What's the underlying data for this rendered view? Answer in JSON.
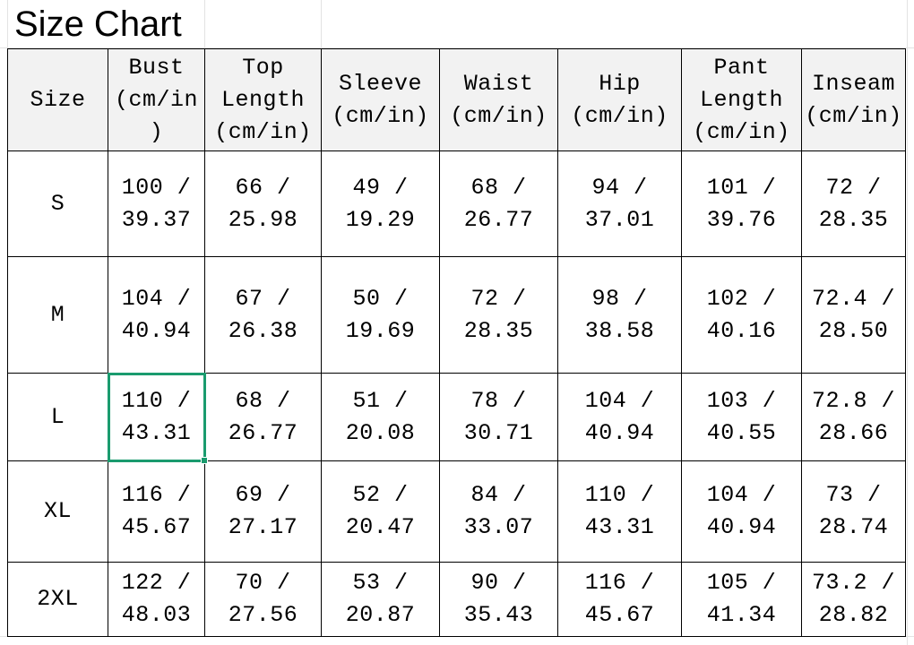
{
  "title": "Size Chart",
  "headers": [
    "Size",
    "Bust\n(cm/in\n)",
    "Top\nLength\n(cm/in)",
    "Sleeve\n(cm/in)",
    "Waist\n(cm/in)",
    "Hip\n(cm/in)",
    "Pant\nLength\n(cm/in)",
    "Inseam\n(cm/in)"
  ],
  "rows": [
    [
      "S",
      "100 /\n39.37",
      "66 /\n25.98",
      "49 /\n19.29",
      "68 /\n26.77",
      "94 /\n37.01",
      "101 /\n39.76",
      "72 /\n28.35"
    ],
    [
      "M",
      "104 /\n40.94",
      "67 /\n26.38",
      "50 /\n19.69",
      "72 /\n28.35",
      "98 /\n38.58",
      "102 /\n40.16",
      "72.4 /\n28.50"
    ],
    [
      "L",
      "110 /\n43.31",
      "68 /\n26.77",
      "51 /\n20.08",
      "78 /\n30.71",
      "104 /\n40.94",
      "103 /\n40.55",
      "72.8 /\n28.66"
    ],
    [
      "XL",
      "116 /\n45.67",
      "69 /\n27.17",
      "52 /\n20.47",
      "84 /\n33.07",
      "110 /\n43.31",
      "104 /\n40.94",
      "73 /\n28.74"
    ],
    [
      "2XL",
      "122 /\n48.03",
      "70 /\n27.56",
      "53 /\n20.87",
      "90 /\n35.43",
      "116 /\n45.67",
      "105 /\n41.34",
      "73.2 /\n28.82"
    ]
  ],
  "selected_cell": "L / Bust",
  "colors": {
    "header_bg": "#f2f2f2",
    "selection": "#1a9b6e",
    "border": "#000000"
  }
}
